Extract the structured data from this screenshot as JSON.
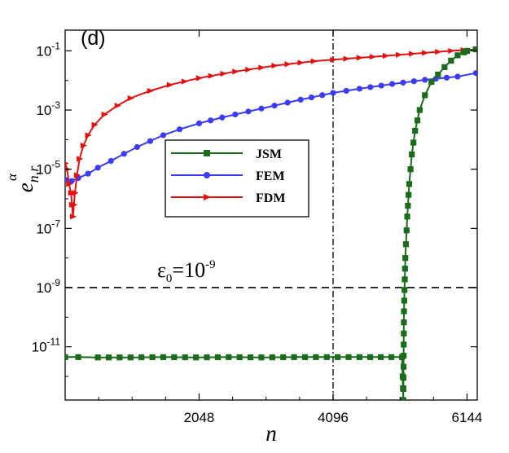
{
  "chart_data": {
    "type": "line",
    "panel_label": "(d)",
    "xlabel": "n",
    "ylabel": {
      "base": "e",
      "sub": "n,r",
      "sup": "α"
    },
    "x_range": [
      0,
      6300
    ],
    "y_log10_range": [
      -12.8,
      -0.3
    ],
    "x_ticks": [
      {
        "value": 2048,
        "label": "2048"
      },
      {
        "value": 4096,
        "label": "4096"
      },
      {
        "value": 6144,
        "label": "6144"
      }
    ],
    "y_ticks": [
      {
        "exp": -1,
        "base": "10",
        "sup": "-1"
      },
      {
        "exp": -3,
        "base": "10",
        "sup": "-3"
      },
      {
        "exp": -5,
        "base": "10",
        "sup": "-5"
      },
      {
        "exp": -7,
        "base": "10",
        "sup": "-7"
      },
      {
        "exp": -9,
        "base": "10",
        "sup": "-9"
      },
      {
        "exp": -11,
        "base": "10",
        "sup": "-11"
      }
    ],
    "threshold": {
      "y_log10": -9,
      "base": "ε",
      "sub": "0",
      "equals": "=10",
      "sup": "-9"
    },
    "vertical_line_x": 4096,
    "legend": {
      "placement": "center-left"
    },
    "series": [
      {
        "name": "JSM",
        "color": "#1a6b1a",
        "marker": "square",
        "points": [
          [
            0,
            -11.35
          ],
          [
            200,
            -11.35
          ],
          [
            500,
            -11.36
          ],
          [
            1000,
            -11.36
          ],
          [
            1500,
            -11.35
          ],
          [
            2000,
            -11.36
          ],
          [
            2500,
            -11.35
          ],
          [
            3000,
            -11.36
          ],
          [
            3500,
            -11.35
          ],
          [
            4000,
            -11.35
          ],
          [
            4500,
            -11.35
          ],
          [
            5150,
            -11.35
          ],
          [
            5160,
            -12.0
          ],
          [
            5170,
            -12.8
          ],
          [
            5180,
            -9.8
          ],
          [
            5200,
            -8.0
          ],
          [
            5230,
            -6.6
          ],
          [
            5260,
            -5.5
          ],
          [
            5300,
            -4.5
          ],
          [
            5350,
            -3.7
          ],
          [
            5420,
            -3.0
          ],
          [
            5500,
            -2.5
          ],
          [
            5600,
            -2.05
          ],
          [
            5700,
            -1.8
          ],
          [
            5800,
            -1.55
          ],
          [
            5900,
            -1.33
          ],
          [
            6000,
            -1.15
          ],
          [
            6100,
            -1.05
          ],
          [
            6144,
            -1.0
          ],
          [
            6280,
            -0.95
          ]
        ]
      },
      {
        "name": "FEM",
        "color": "#3b3bf5",
        "marker": "circle",
        "points": [
          [
            0,
            -5.35
          ],
          [
            100,
            -5.4
          ],
          [
            200,
            -5.3
          ],
          [
            350,
            -5.15
          ],
          [
            500,
            -4.95
          ],
          [
            700,
            -4.72
          ],
          [
            900,
            -4.48
          ],
          [
            1100,
            -4.25
          ],
          [
            1300,
            -4.05
          ],
          [
            1500,
            -3.85
          ],
          [
            1750,
            -3.65
          ],
          [
            2048,
            -3.45
          ],
          [
            2400,
            -3.25
          ],
          [
            2800,
            -3.05
          ],
          [
            3200,
            -2.85
          ],
          [
            3600,
            -2.65
          ],
          [
            4096,
            -2.42
          ],
          [
            4500,
            -2.28
          ],
          [
            5000,
            -2.12
          ],
          [
            5500,
            -1.98
          ],
          [
            6000,
            -1.87
          ],
          [
            6280,
            -1.75
          ]
        ]
      },
      {
        "name": "FDM",
        "color": "#e41010",
        "marker": "triangle-right",
        "points": [
          [
            0,
            -4.8
          ],
          [
            30,
            -5.0
          ],
          [
            60,
            -5.5
          ],
          [
            90,
            -5.8
          ],
          [
            120,
            -6.6
          ],
          [
            150,
            -5.8
          ],
          [
            180,
            -5.2
          ],
          [
            220,
            -4.65
          ],
          [
            280,
            -4.2
          ],
          [
            350,
            -3.85
          ],
          [
            450,
            -3.5
          ],
          [
            600,
            -3.15
          ],
          [
            800,
            -2.85
          ],
          [
            1000,
            -2.6
          ],
          [
            1300,
            -2.35
          ],
          [
            1600,
            -2.15
          ],
          [
            2048,
            -1.92
          ],
          [
            2600,
            -1.7
          ],
          [
            3200,
            -1.5
          ],
          [
            3800,
            -1.35
          ],
          [
            4096,
            -1.3
          ],
          [
            4700,
            -1.2
          ],
          [
            5300,
            -1.1
          ],
          [
            5900,
            -1.0
          ],
          [
            6280,
            -0.95
          ]
        ]
      }
    ]
  }
}
